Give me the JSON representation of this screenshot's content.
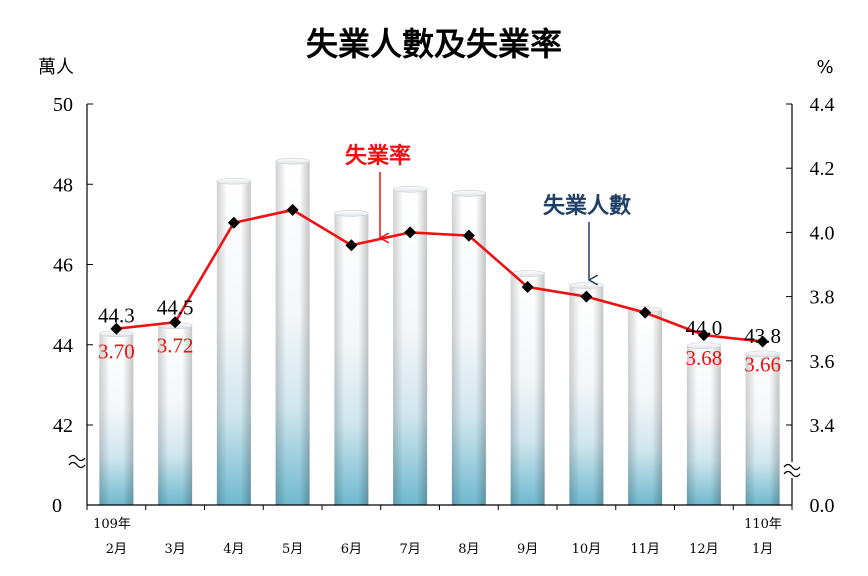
{
  "chart_data": {
    "type": "bar",
    "title": "失業人數及失業率",
    "left_unit": "萬人",
    "right_unit": "%",
    "year_start_label": "109年",
    "year_end_label": "110年",
    "categories": [
      "2月",
      "3月",
      "4月",
      "5月",
      "6月",
      "7月",
      "8月",
      "9月",
      "10月",
      "11月",
      "12月",
      "1月"
    ],
    "left_axis": {
      "ylim": [
        42,
        50
      ],
      "ticks": [
        "42",
        "44",
        "46",
        "48",
        "50"
      ],
      "break_label": "0"
    },
    "right_axis": {
      "ylim": [
        3.4,
        4.4
      ],
      "ticks": [
        "3.4",
        "3.6",
        "3.8",
        "4.0",
        "4.2",
        "4.4"
      ],
      "break_label": "0.0"
    },
    "series": [
      {
        "name": "失業人數",
        "type": "bar",
        "axis": "left",
        "values": [
          44.3,
          44.5,
          48.1,
          48.6,
          47.3,
          47.9,
          47.8,
          45.8,
          45.5,
          44.9,
          44.0,
          43.8
        ]
      },
      {
        "name": "失業率",
        "type": "line",
        "axis": "right",
        "values": [
          3.7,
          3.72,
          4.03,
          4.07,
          3.96,
          4.0,
          3.99,
          3.83,
          3.8,
          3.75,
          3.68,
          3.66
        ]
      }
    ],
    "bar_data_labels": [
      {
        "index": 0,
        "text": "44.3"
      },
      {
        "index": 1,
        "text": "44.5"
      },
      {
        "index": 10,
        "text": "44.0"
      },
      {
        "index": 11,
        "text": "43.8"
      }
    ],
    "rate_data_labels": [
      {
        "index": 0,
        "text": "3.70"
      },
      {
        "index": 1,
        "text": "3.72"
      },
      {
        "index": 10,
        "text": "3.68"
      },
      {
        "index": 11,
        "text": "3.66"
      }
    ],
    "annotations": [
      {
        "text": "失業率",
        "target_series": "失業率",
        "target_index": 5
      },
      {
        "text": "失業人數",
        "target_series": "失業人數",
        "target_index": 8
      }
    ],
    "colors": {
      "rate_line": "#ee1111",
      "marker": "#000000",
      "annotation_rate": "#ee1111",
      "annotation_count": "#1f3f66",
      "bar_base": "#7fc4d6"
    }
  }
}
